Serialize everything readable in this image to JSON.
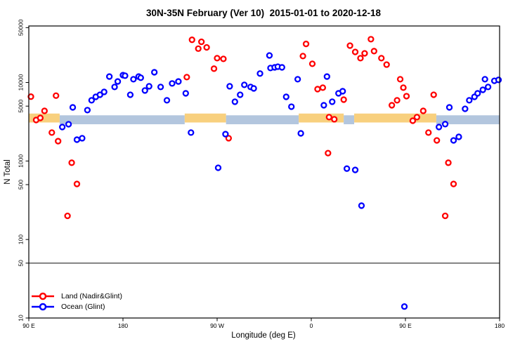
{
  "background_color": "#ffffff",
  "chart_data": {
    "type": "scatter",
    "title": "30N-35N February (Ver 10)  2015-01-01 to 2020-12-18",
    "xlabel": "Longitude (deg E)",
    "ylabel": "N Total",
    "x_axis": {
      "description": "longitude wrapping eastward from 90E, spanning 450 degrees",
      "domain": [
        90,
        540
      ],
      "ticks": [
        {
          "value": 90,
          "label": "90 E"
        },
        {
          "value": 180,
          "label": "180"
        },
        {
          "value": 270,
          "label": "90 W"
        },
        {
          "value": 360,
          "label": "0"
        },
        {
          "value": 450,
          "label": "90 E"
        },
        {
          "value": 540,
          "label": "180"
        }
      ]
    },
    "y_axis": {
      "scale": "log",
      "domain": [
        10,
        52000
      ],
      "ticks": [
        10,
        50,
        100,
        500,
        1000,
        5000,
        10000,
        50000
      ]
    },
    "grid": "off",
    "legend_position": "bottom-left-inside",
    "reference_line": {
      "y": 50,
      "color": "#4d4d4d"
    },
    "surface_band": {
      "y_range": [
        3000,
        3900
      ],
      "land_color": "#f8d07e",
      "ocean_color": "#b3c6de",
      "segments": [
        {
          "from": 90,
          "to": 119.5,
          "surface": "land"
        },
        {
          "from": 119.5,
          "to": 239,
          "surface": "ocean"
        },
        {
          "from": 239,
          "to": 278.5,
          "surface": "land"
        },
        {
          "from": 278.5,
          "to": 348,
          "surface": "ocean"
        },
        {
          "from": 348,
          "to": 391,
          "surface": "land"
        },
        {
          "from": 391,
          "to": 401,
          "surface": "ocean"
        },
        {
          "from": 401,
          "to": 479.5,
          "surface": "land"
        },
        {
          "from": 479.5,
          "to": 540,
          "surface": "ocean"
        }
      ]
    },
    "series": [
      {
        "name": "Land (Nadir&Glint)",
        "color": "#ff0000",
        "points": [
          [
            92,
            6600
          ],
          [
            97,
            3330
          ],
          [
            101,
            3540
          ],
          [
            105,
            4350
          ],
          [
            112,
            2300
          ],
          [
            116,
            6800
          ],
          [
            118,
            1790
          ],
          [
            127,
            200
          ],
          [
            131,
            950
          ],
          [
            136,
            510
          ],
          [
            241,
            11700
          ],
          [
            246,
            35000
          ],
          [
            252,
            27000
          ],
          [
            255,
            33000
          ],
          [
            260,
            28000
          ],
          [
            267,
            15000
          ],
          [
            270,
            20400
          ],
          [
            276,
            20000
          ],
          [
            281,
            1950
          ],
          [
            352,
            21700
          ],
          [
            355,
            31000
          ],
          [
            361,
            17300
          ],
          [
            366,
            8240
          ],
          [
            371,
            8590
          ],
          [
            376,
            1260
          ],
          [
            377,
            3620
          ],
          [
            382,
            3400
          ],
          [
            391,
            6050
          ],
          [
            397,
            29500
          ],
          [
            402,
            24500
          ],
          [
            407,
            20400
          ],
          [
            411,
            23500
          ],
          [
            417,
            35600
          ],
          [
            420,
            25100
          ],
          [
            427,
            20400
          ],
          [
            432,
            16900
          ],
          [
            437,
            5130
          ],
          [
            442,
            5930
          ],
          [
            445,
            11000
          ],
          [
            448,
            8590
          ],
          [
            451,
            6700
          ],
          [
            457,
            3260
          ],
          [
            461,
            3620
          ],
          [
            467,
            4350
          ],
          [
            472,
            2300
          ],
          [
            477,
            6980
          ],
          [
            480,
            1830
          ],
          [
            488,
            200
          ],
          [
            491,
            950
          ],
          [
            496,
            510
          ]
        ]
      },
      {
        "name": "Ocean (Glint)",
        "color": "#0000ff",
        "points": [
          [
            122,
            2710
          ],
          [
            128,
            2940
          ],
          [
            132,
            4820
          ],
          [
            136,
            1870
          ],
          [
            141,
            1950
          ],
          [
            146,
            4450
          ],
          [
            150,
            5930
          ],
          [
            154,
            6570
          ],
          [
            158,
            6980
          ],
          [
            162,
            7590
          ],
          [
            167,
            11900
          ],
          [
            172,
            8770
          ],
          [
            175,
            10300
          ],
          [
            180,
            12400
          ],
          [
            182,
            12200
          ],
          [
            187,
            6980
          ],
          [
            190,
            11000
          ],
          [
            195,
            11900
          ],
          [
            197,
            11500
          ],
          [
            201,
            7910
          ],
          [
            205,
            8950
          ],
          [
            210,
            13500
          ],
          [
            216,
            8770
          ],
          [
            222,
            5930
          ],
          [
            227,
            9730
          ],
          [
            233,
            10300
          ],
          [
            240,
            7280
          ],
          [
            245,
            2300
          ],
          [
            271,
            820
          ],
          [
            278,
            2200
          ],
          [
            282,
            8950
          ],
          [
            287,
            5690
          ],
          [
            292,
            6980
          ],
          [
            296,
            9330
          ],
          [
            302,
            8770
          ],
          [
            305,
            8410
          ],
          [
            311,
            13000
          ],
          [
            320,
            22100
          ],
          [
            321,
            15300
          ],
          [
            325,
            15600
          ],
          [
            328,
            15900
          ],
          [
            332,
            15600
          ],
          [
            336,
            6570
          ],
          [
            341,
            4920
          ],
          [
            347,
            11000
          ],
          [
            350,
            2250
          ],
          [
            372,
            5130
          ],
          [
            375,
            11900
          ],
          [
            380,
            5690
          ],
          [
            386,
            7280
          ],
          [
            390,
            7740
          ],
          [
            394,
            800
          ],
          [
            402,
            770
          ],
          [
            408,
            270
          ],
          [
            449,
            14
          ],
          [
            482,
            2710
          ],
          [
            488,
            2950
          ],
          [
            492,
            4820
          ],
          [
            496,
            1830
          ],
          [
            501,
            2030
          ],
          [
            507,
            4620
          ],
          [
            511,
            5930
          ],
          [
            516,
            6570
          ],
          [
            519,
            7280
          ],
          [
            524,
            8070
          ],
          [
            526,
            11000
          ],
          [
            529,
            8770
          ],
          [
            535,
            10500
          ],
          [
            539,
            10800
          ]
        ]
      }
    ]
  }
}
